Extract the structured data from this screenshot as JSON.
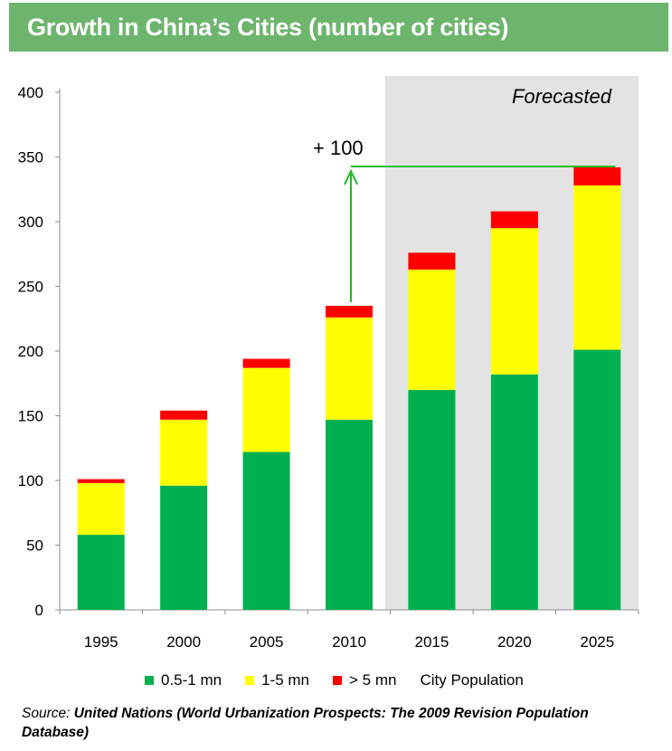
{
  "title": "Growth in China’s Cities (number of cities)",
  "colors": {
    "banner": "#6db56d",
    "forecast_bg": "#e3e3e3",
    "arrow": "#22bb22"
  },
  "chart_data": {
    "type": "bar",
    "stacked": true,
    "categories": [
      "1995",
      "2000",
      "2005",
      "2010",
      "2015",
      "2020",
      "2025"
    ],
    "series": [
      {
        "name": "0.5-1 mn",
        "color": "#00b050",
        "values": [
          58,
          96,
          122,
          147,
          170,
          182,
          201
        ]
      },
      {
        "name": "1-5 mn",
        "color": "#ffff00",
        "values": [
          40,
          51,
          65,
          79,
          93,
          113,
          127
        ]
      },
      {
        "name": "> 5 mn",
        "color": "#ff0000",
        "values": [
          3,
          7,
          7,
          9,
          13,
          13,
          14
        ]
      }
    ],
    "ylim": [
      0,
      400
    ],
    "yticks": [
      "0",
      "50",
      "100",
      "150",
      "200",
      "250",
      "300",
      "350",
      "400"
    ],
    "grid": false,
    "forecast_label": "Forecasted",
    "forecast_from": "2015",
    "annotation": "+ 100",
    "legend_title": "City Population",
    "legend_position": "bottom"
  },
  "source": {
    "prefix": "Source: ",
    "text": "United Nations (World Urbanization Prospects: The 2009 Revision Population Database)"
  }
}
